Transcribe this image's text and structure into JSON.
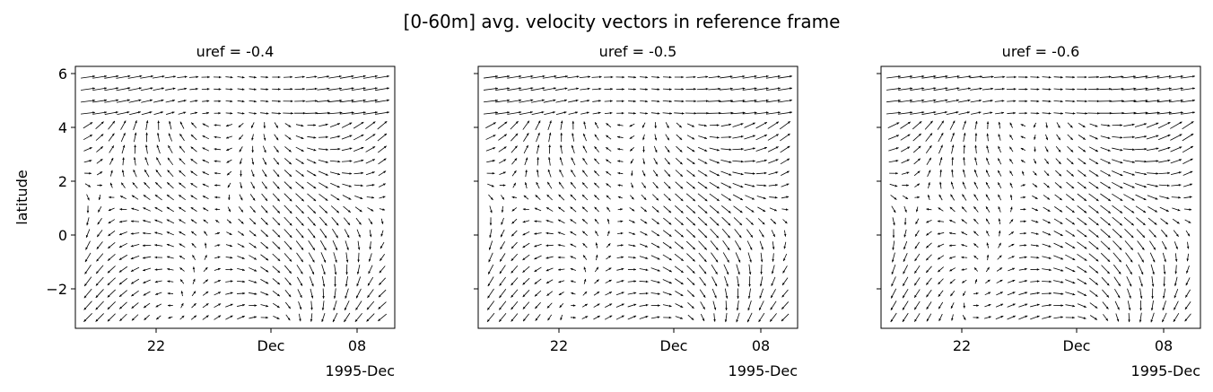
{
  "figure": {
    "title": "[0-60m] avg. velocity vectors in reference frame"
  },
  "chart_data": [
    {
      "type": "quiver",
      "title": "uref = -0.4",
      "uref": -0.4,
      "ylabel": "latitude",
      "ylim": [
        -3.4,
        6.2
      ],
      "xlim": [
        "1995-11-15",
        "1995-12-12"
      ],
      "x_ticks": [
        "22",
        "Dec",
        "08"
      ],
      "x_offset_label": "1995-Dec",
      "y_ticks": [
        "6",
        "4",
        "2",
        "0",
        "−2"
      ]
    },
    {
      "type": "quiver",
      "title": "uref = -0.5",
      "uref": -0.5,
      "ylabel": "",
      "ylim": [
        -3.4,
        6.2
      ],
      "xlim": [
        "1995-11-15",
        "1995-12-12"
      ],
      "x_ticks": [
        "22",
        "Dec",
        "08"
      ],
      "x_offset_label": "1995-Dec",
      "y_ticks": []
    },
    {
      "type": "quiver",
      "title": "uref = -0.6",
      "uref": -0.6,
      "ylabel": "",
      "ylim": [
        -3.4,
        6.2
      ],
      "xlim": [
        "1995-11-15",
        "1995-12-12"
      ],
      "x_ticks": [
        "22",
        "Dec",
        "08"
      ],
      "x_offset_label": "1995-Dec",
      "y_ticks": []
    }
  ],
  "colors": {
    "arrow": "#000000",
    "axis": "#000000",
    "background": "#ffffff"
  }
}
